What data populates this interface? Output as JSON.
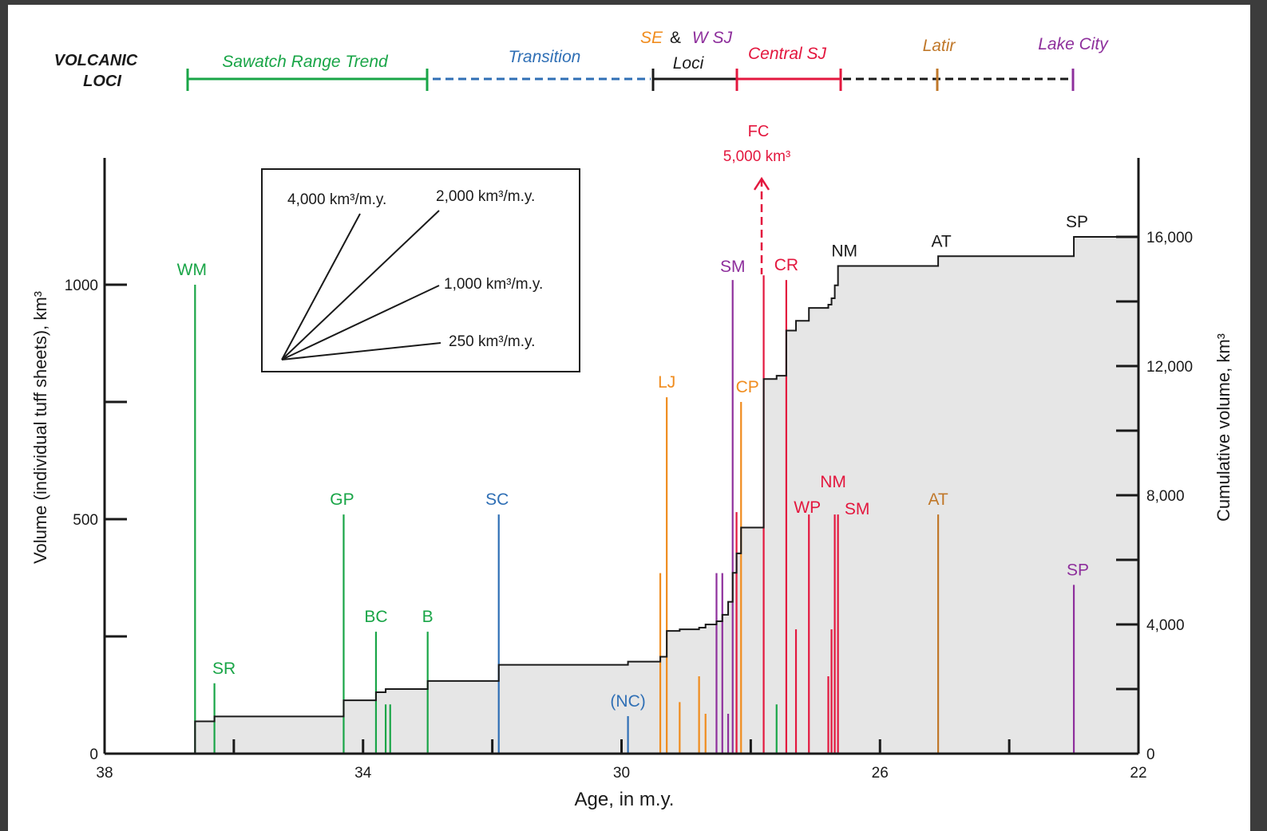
{
  "colors": {
    "sawatch": "#19a547",
    "transition": "#2f6fb5",
    "se": "#f08c1e",
    "wsj": "#8e2f9c",
    "central": "#e3173e",
    "latir": "#c0782a",
    "lakecity": "#8e2f9c",
    "black": "#1a1a1a",
    "fill": "#e6e6e6"
  },
  "loci": {
    "heading_line1": "VOLCANIC",
    "heading_line2": "LOCI",
    "sawatch": "Sawatch Range Trend",
    "transition": "Transition",
    "se": "SE",
    "amp": "&",
    "wsj": "W SJ",
    "loci_word": "Loci",
    "central": "Central SJ",
    "latir": "Latir",
    "lakecity": "Lake City"
  },
  "legend": {
    "rate1": "4,000 km³/m.y.",
    "rate2": "2,000 km³/m.y.",
    "rate3": "1,000 km³/m.y.",
    "rate4": "250 km³/m.y."
  },
  "fc_annotation": {
    "label": "FC",
    "volume": "5,000 km³"
  },
  "chart_data": {
    "type": "bar",
    "xlabel": "Age,  in m.y.",
    "ylabel": "Volume (individual tuff sheets),  km³",
    "y2label": "Cumulative volume,  km³",
    "xlim": [
      38,
      22
    ],
    "ylim": [
      0,
      1000
    ],
    "y2lim": [
      0,
      16000
    ],
    "x_ticks": [
      "38",
      "34",
      "30",
      "26",
      "22"
    ],
    "y_ticks": [
      "0",
      "500",
      "1000"
    ],
    "y2_ticks": [
      "0",
      "4,000",
      "8,000",
      "12,000",
      "16,000"
    ],
    "tuffs": [
      {
        "label": "WM",
        "age": 36.6,
        "volume": 1000,
        "color": "sawatch"
      },
      {
        "label": "SR",
        "age": 36.3,
        "volume": 150,
        "color": "sawatch"
      },
      {
        "label": "GP",
        "age": 34.3,
        "volume": 510,
        "color": "sawatch"
      },
      {
        "label": "BC",
        "age": 33.8,
        "volume": 260,
        "color": "sawatch"
      },
      {
        "label": "",
        "age": 33.65,
        "volume": 105,
        "color": "sawatch"
      },
      {
        "label": "",
        "age": 33.58,
        "volume": 105,
        "color": "sawatch"
      },
      {
        "label": "B",
        "age": 33.0,
        "volume": 260,
        "color": "sawatch"
      },
      {
        "label": "SC",
        "age": 31.9,
        "volume": 510,
        "color": "transition"
      },
      {
        "label": "(NC)",
        "age": 29.9,
        "volume": 80,
        "color": "transition"
      },
      {
        "label": "",
        "age": 29.4,
        "volume": 385,
        "color": "se"
      },
      {
        "label": "LJ",
        "age": 29.3,
        "volume": 760,
        "color": "se"
      },
      {
        "label": "",
        "age": 29.1,
        "volume": 110,
        "color": "se"
      },
      {
        "label": "",
        "age": 28.8,
        "volume": 165,
        "color": "se"
      },
      {
        "label": "",
        "age": 28.7,
        "volume": 85,
        "color": "se"
      },
      {
        "label": "",
        "age": 28.53,
        "volume": 385,
        "color": "wsj"
      },
      {
        "label": "",
        "age": 28.44,
        "volume": 385,
        "color": "wsj"
      },
      {
        "label": "",
        "age": 28.35,
        "volume": 85,
        "color": "wsj"
      },
      {
        "label": "SM",
        "age": 28.28,
        "volume": 1010,
        "color": "wsj"
      },
      {
        "label": "",
        "age": 28.22,
        "volume": 515,
        "color": "central"
      },
      {
        "label": "CP",
        "age": 28.15,
        "volume": 750,
        "color": "se"
      },
      {
        "label": "FC",
        "age": 27.8,
        "volume": 1020,
        "color": "central"
      },
      {
        "label": "",
        "age": 27.6,
        "volume": 105,
        "color": "sawatch"
      },
      {
        "label": "CR",
        "age": 27.45,
        "volume": 1010,
        "color": "central"
      },
      {
        "label": "",
        "age": 27.3,
        "volume": 265,
        "color": "central"
      },
      {
        "label": "WP",
        "age": 27.1,
        "volume": 510,
        "color": "central"
      },
      {
        "label": "",
        "age": 26.8,
        "volume": 165,
        "color": "central"
      },
      {
        "label": "",
        "age": 26.75,
        "volume": 265,
        "color": "central"
      },
      {
        "label": "NM",
        "age": 26.7,
        "volume": 510,
        "color": "central"
      },
      {
        "label": "SM",
        "age": 26.65,
        "volume": 510,
        "color": "central"
      },
      {
        "label": "AT",
        "age": 25.1,
        "volume": 510,
        "color": "latir"
      },
      {
        "label": "SP",
        "age": 23.0,
        "volume": 360,
        "color": "lakecity"
      }
    ],
    "cumulative_step": [
      [
        36.6,
        1000
      ],
      [
        36.3,
        1150
      ],
      [
        34.3,
        1650
      ],
      [
        33.8,
        1900
      ],
      [
        33.65,
        2000
      ],
      [
        33.0,
        2250
      ],
      [
        31.9,
        2750
      ],
      [
        29.9,
        2850
      ],
      [
        29.4,
        3000
      ],
      [
        29.3,
        3800
      ],
      [
        29.1,
        3850
      ],
      [
        28.8,
        3900
      ],
      [
        28.7,
        4000
      ],
      [
        28.53,
        4100
      ],
      [
        28.44,
        4300
      ],
      [
        28.35,
        4700
      ],
      [
        28.28,
        5600
      ],
      [
        28.22,
        6200
      ],
      [
        28.15,
        7000
      ],
      [
        27.8,
        11600
      ],
      [
        27.6,
        11700
      ],
      [
        27.45,
        13100
      ],
      [
        27.3,
        13400
      ],
      [
        27.1,
        13800
      ],
      [
        26.8,
        13900
      ],
      [
        26.75,
        14100
      ],
      [
        26.7,
        14500
      ],
      [
        26.65,
        15100
      ],
      [
        25.1,
        15400
      ],
      [
        23.0,
        16000
      ],
      [
        22.0,
        16000
      ]
    ],
    "cumulative_labels": [
      {
        "label": "NM",
        "age": 26.6,
        "value": 15100
      },
      {
        "label": "AT",
        "age": 25.1,
        "value": 15400
      },
      {
        "label": "SP",
        "age": 23.0,
        "value": 16000
      }
    ]
  }
}
